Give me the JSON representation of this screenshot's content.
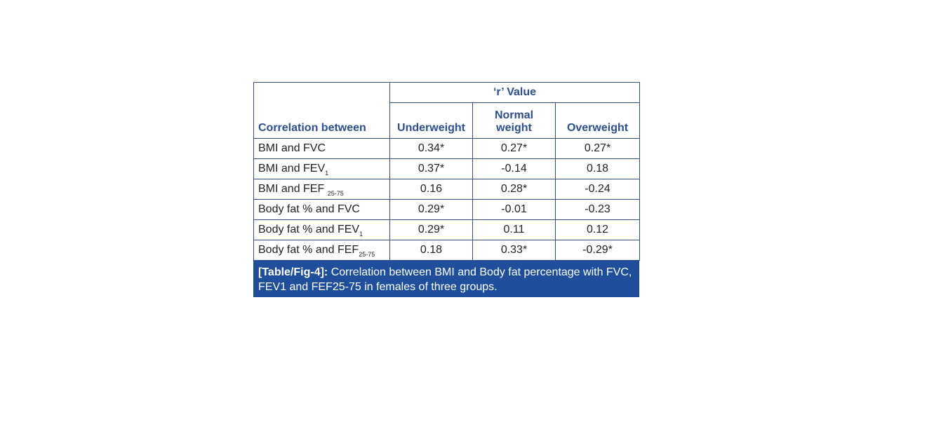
{
  "table": {
    "row_header": "Correlation between",
    "group_header": "‘r’ Value",
    "columns": [
      "Underweight",
      "Normal weight",
      "Overweight"
    ],
    "rows": [
      {
        "label": "BMI and FVC",
        "sub": "",
        "values": [
          "0.34*",
          "0.27*",
          "0.27*"
        ]
      },
      {
        "label": "BMI and FEV",
        "sub": "1",
        "values": [
          "0.37*",
          "-0.14",
          "0.18"
        ]
      },
      {
        "label": "BMI and FEF ",
        "sub": "25-75",
        "values": [
          "0.16",
          "0.28*",
          "-0.24"
        ]
      },
      {
        "label": "Body fat % and FVC",
        "sub": "",
        "values": [
          "0.29*",
          "-0.01",
          "-0.23"
        ]
      },
      {
        "label": "Body fat % and FEV",
        "sub": "1",
        "values": [
          "0.29*",
          "0.11",
          "0.12"
        ]
      },
      {
        "label": "Body fat % and FEF",
        "sub": "25-75",
        "values": [
          "0.18",
          "0.33*",
          "-0.29*"
        ]
      }
    ]
  },
  "caption": {
    "label": "[Table/Fig-4]:",
    "text": " Correlation between BMI and Body fat percentage with FVC, FEV1 and FEF25-75 in females of three groups."
  },
  "colors": {
    "border": "#2d4f8e",
    "header_text": "#2d4f8e",
    "caption_bg": "#1f4f9b",
    "caption_text": "#ffffff"
  }
}
